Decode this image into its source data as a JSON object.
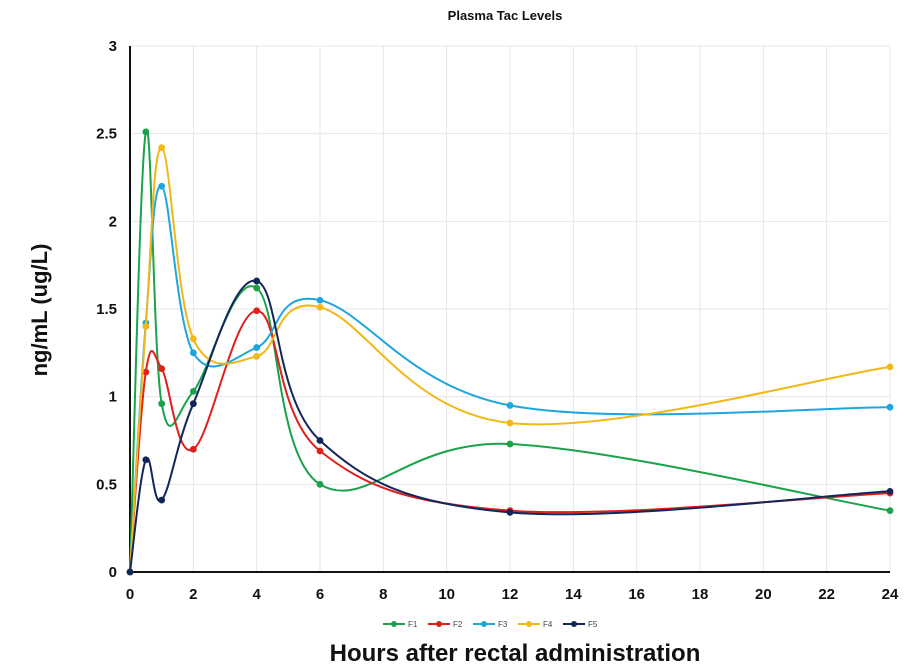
{
  "chart_data": {
    "type": "line",
    "title": "Plasma Tac Levels",
    "xlabel": "Hours after rectal administration",
    "ylabel": "ng/mL (ug/L)",
    "xlim": [
      0,
      24
    ],
    "ylim": [
      0,
      3
    ],
    "x_ticks": [
      "0",
      "2",
      "4",
      "6",
      "8",
      "10",
      "12",
      "14",
      "16",
      "18",
      "20",
      "22",
      "24"
    ],
    "y_ticks": [
      "0",
      "0.5",
      "1",
      "1.5",
      "2",
      "2.5",
      "3"
    ],
    "grid": true,
    "legend_position": "bottom",
    "x": [
      0,
      0.5,
      1,
      2,
      4,
      6,
      12,
      24
    ],
    "series": [
      {
        "name": "F1",
        "color": "#1aa34a",
        "values": [
          0,
          2.51,
          0.96,
          1.03,
          1.62,
          0.5,
          0.73,
          0.35
        ]
      },
      {
        "name": "F2",
        "color": "#e0201b",
        "values": [
          0,
          1.14,
          1.16,
          0.7,
          1.49,
          0.69,
          0.35,
          0.45
        ]
      },
      {
        "name": "F3",
        "color": "#1fa6dd",
        "values": [
          0,
          1.42,
          2.2,
          1.25,
          1.28,
          1.55,
          0.95,
          0.94
        ]
      },
      {
        "name": "F4",
        "color": "#f2b817",
        "values": [
          0,
          1.4,
          2.42,
          1.33,
          1.23,
          1.51,
          0.85,
          1.17
        ]
      },
      {
        "name": "F5",
        "color": "#13265a",
        "values": [
          0,
          0.64,
          0.41,
          0.96,
          1.66,
          0.75,
          0.34,
          0.46
        ]
      }
    ]
  }
}
